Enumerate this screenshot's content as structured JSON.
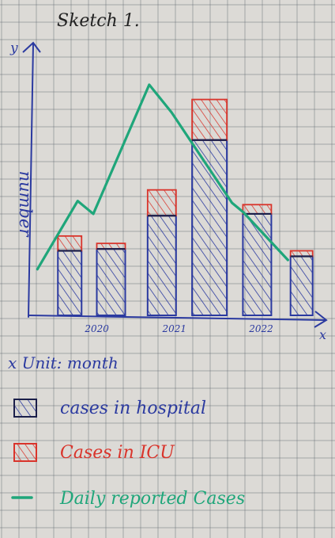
{
  "header": {
    "title": "Sketch 1."
  },
  "chart_data": {
    "type": "bar",
    "title": "Sketch 1.",
    "xlabel": "x",
    "ylabel": "y",
    "y_axis_text": "number",
    "unit_note": "x Unit: month",
    "x_ticks": [
      "2020",
      "2021",
      "2022"
    ],
    "bars": [
      {
        "hospital": 3.5,
        "icu": 0.8
      },
      {
        "hospital": 3.6,
        "icu": 0.3
      },
      {
        "hospital": 5.4,
        "icu": 1.4
      },
      {
        "hospital": 9.5,
        "icu": 2.2
      },
      {
        "hospital": 5.5,
        "icu": 0.5
      },
      {
        "hospital": 3.2,
        "icu": 0.3
      }
    ],
    "series": [
      {
        "name": "cases in hospital",
        "stack": "bars",
        "color": "#2b3aa0"
      },
      {
        "name": "Cases in ICU",
        "stack": "bars",
        "color": "#d9342b"
      },
      {
        "name": "Daily reported Cases",
        "type": "line",
        "color": "#1fa67a",
        "points": [
          [
            0.4,
            2.5
          ],
          [
            2.2,
            6.2
          ],
          [
            2.9,
            5.5
          ],
          [
            5.4,
            12.5
          ],
          [
            6.4,
            11.0
          ],
          [
            9.1,
            6.1
          ],
          [
            9.6,
            5.6
          ],
          [
            11.6,
            3.0
          ]
        ]
      }
    ],
    "xlim": [
      0,
      13
    ],
    "ylim": [
      0,
      14
    ],
    "legend": "bottom, stacked vertically",
    "grid": true
  },
  "colors": {
    "paper": "#dcdad6",
    "grid": "#5e6770",
    "ink": "#2b3aa0",
    "icu": "#d9342b",
    "line": "#1fa67a"
  },
  "legend": {
    "unit_note": "x Unit: month",
    "items": [
      {
        "label": "cases in hospital",
        "color": "#2b3aa0",
        "kind": "hatch-box"
      },
      {
        "label": "Cases in ICU",
        "color": "#d9342b",
        "kind": "hatch-box"
      },
      {
        "label": "Daily reported Cases",
        "color": "#1fa67a",
        "kind": "dash"
      }
    ]
  }
}
